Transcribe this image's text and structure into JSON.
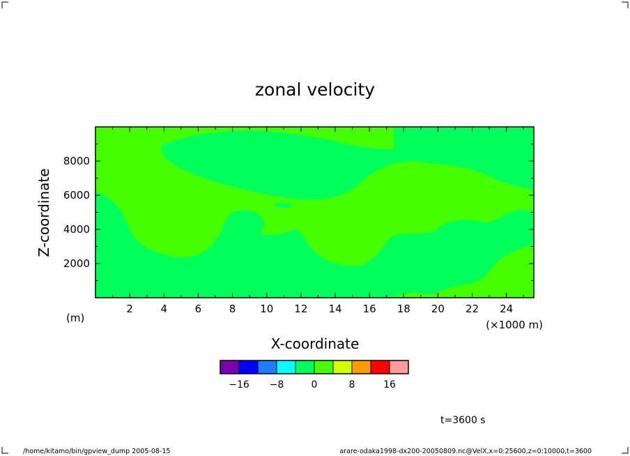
{
  "chart_data": {
    "type": "contour",
    "title": "zonal velocity",
    "xlabel": "X-coordinate",
    "ylabel": "Z-coordinate",
    "x_unit": "(×1000 m)",
    "y_unit": "(m)",
    "x_range": [
      0,
      25.6
    ],
    "y_range": [
      0,
      10000
    ],
    "x_ticks": [
      2,
      4,
      6,
      8,
      10,
      12,
      14,
      16,
      18,
      20,
      22,
      24
    ],
    "y_ticks": [
      2000,
      4000,
      6000,
      8000
    ],
    "colorbar": {
      "levels": [
        -20,
        -16,
        -12,
        -8,
        -4,
        0,
        4,
        8,
        12,
        16,
        20
      ],
      "colors": [
        "#7a00b0",
        "#0000ff",
        "#1e7dff",
        "#00ffff",
        "#00ff5a",
        "#45ff00",
        "#d2ff00",
        "#ff9b00",
        "#ff0000",
        "#ff9b9b"
      ],
      "tick_values": [
        -16,
        -8,
        0,
        8,
        16
      ],
      "tick_labels": [
        "−16",
        "−8",
        "0",
        "8",
        "16"
      ]
    },
    "field_colors": {
      "band_0_4": "#45ff00",
      "band_-4_0": "#00ff5a"
    },
    "time_label": "t=3600 s"
  },
  "footer": {
    "left": "/home/kitamo/bin/gpview_dump   2005-08-15",
    "right": "arare-odaka1998-dx200-20050809.nc@VelX,x=0:25600,z=0:10000,t=3600"
  }
}
